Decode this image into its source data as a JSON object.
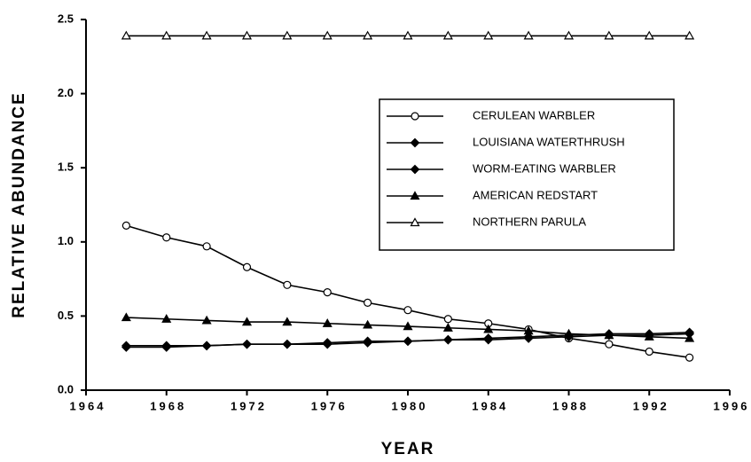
{
  "chart_data": {
    "type": "line",
    "x_label": "YEAR",
    "y_label": "RELATIVE ABUNDANCE",
    "x": [
      1966,
      1968,
      1970,
      1972,
      1974,
      1976,
      1978,
      1980,
      1982,
      1984,
      1986,
      1988,
      1990,
      1992,
      1994
    ],
    "series": [
      {
        "name": "CERULEAN WARBLER",
        "color": "#000000",
        "marker": "circle",
        "filled": false,
        "values": [
          1.11,
          1.03,
          0.97,
          0.83,
          0.71,
          0.66,
          0.59,
          0.54,
          0.48,
          0.45,
          0.41,
          0.35,
          0.31,
          0.26,
          0.22
        ]
      },
      {
        "name": "LOUISIANA WATERTHRUSH",
        "color": "#000000",
        "marker": "diamond",
        "filled": true,
        "values": [
          0.29,
          0.29,
          0.3,
          0.31,
          0.31,
          0.32,
          0.33,
          0.33,
          0.34,
          0.34,
          0.35,
          0.36,
          0.37,
          0.37,
          0.38
        ]
      },
      {
        "name": "WORM-EATING WARBLER",
        "color": "#000000",
        "marker": "diamond",
        "filled": true,
        "values": [
          0.3,
          0.3,
          0.3,
          0.31,
          0.31,
          0.31,
          0.32,
          0.33,
          0.34,
          0.35,
          0.36,
          0.37,
          0.38,
          0.38,
          0.39
        ]
      },
      {
        "name": "AMERICAN REDSTART",
        "color": "#000000",
        "marker": "triangle",
        "filled": true,
        "values": [
          0.49,
          0.48,
          0.47,
          0.46,
          0.46,
          0.45,
          0.44,
          0.43,
          0.42,
          0.41,
          0.4,
          0.38,
          0.37,
          0.36,
          0.35
        ]
      },
      {
        "name": "NORTHERN PARULA",
        "color": "#000000",
        "marker": "triangle",
        "filled": false,
        "values": [
          2.39,
          2.39,
          2.39,
          2.39,
          2.39,
          2.39,
          2.39,
          2.39,
          2.39,
          2.39,
          2.39,
          2.39,
          2.39,
          2.39,
          2.39
        ]
      }
    ],
    "xlim": [
      1964,
      1996
    ],
    "xticks": [
      1964,
      1968,
      1972,
      1976,
      1980,
      1984,
      1988,
      1992,
      1996
    ],
    "ylim": [
      0,
      2.5
    ],
    "yticks": [
      {
        "value": 0,
        "label": "0.0"
      },
      0.5,
      {
        "value": 1,
        "label": "1.0"
      },
      1.5,
      {
        "value": 2,
        "label": "2.0"
      },
      2.5
    ],
    "grid": false,
    "legend": "upper right"
  }
}
